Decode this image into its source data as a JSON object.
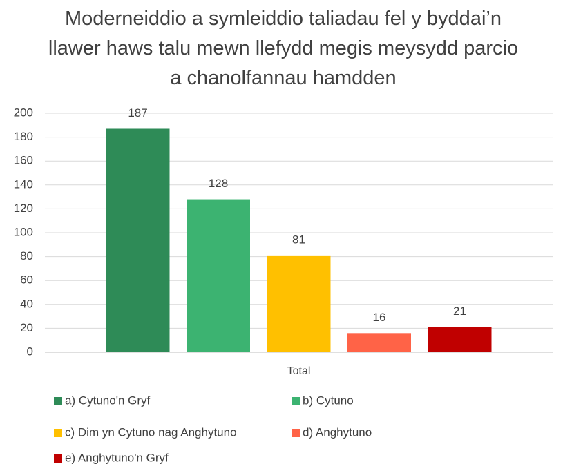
{
  "chart_data": {
    "type": "bar",
    "title": "Moderneiddio a symleiddio taliadau fel y byddai’n llawer haws talu mewn llefydd megis meysydd parcio a chanolfannau hamdden",
    "categories": [
      "Total"
    ],
    "series": [
      {
        "name": "a) Cytuno'n Gryf",
        "color": "#2e8b57",
        "values": [
          187
        ]
      },
      {
        "name": "b) Cytuno",
        "color": "#3cb371",
        "values": [
          128
        ]
      },
      {
        "name": "c) Dim yn Cytuno nag Anghytuno",
        "color": "#ffc000",
        "values": [
          81
        ]
      },
      {
        "name": "d) Anghytuno",
        "color": "#ff6347",
        "values": [
          16
        ]
      },
      {
        "name": "e) Anghytuno'n Gryf",
        "color": "#c00000",
        "values": [
          21
        ]
      }
    ],
    "ylim": [
      0,
      200
    ],
    "yticks": [
      0,
      20,
      40,
      60,
      80,
      100,
      120,
      140,
      160,
      180,
      200
    ],
    "grid": true
  }
}
